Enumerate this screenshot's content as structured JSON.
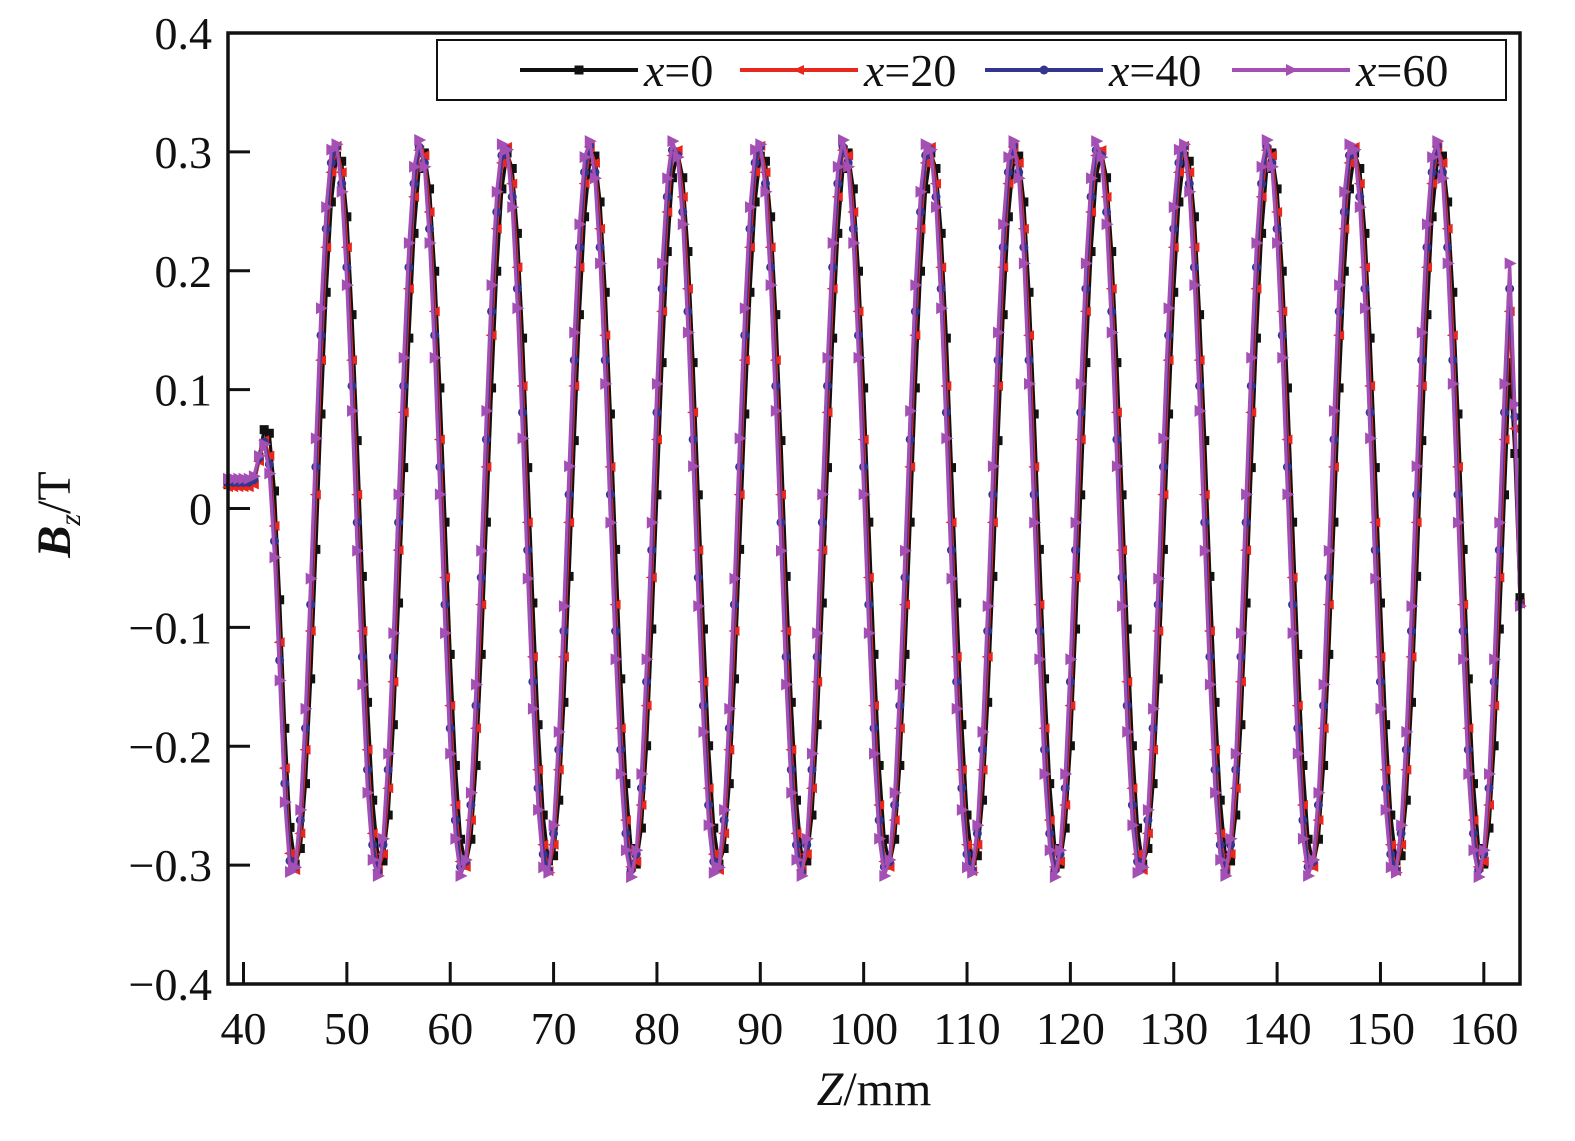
{
  "chart_data": {
    "type": "line",
    "title": "",
    "xlabel": {
      "var": "Z",
      "unit": "/mm"
    },
    "ylabel": {
      "var": "B",
      "sub": "z",
      "unit": "/T"
    },
    "xlim": [
      38.5,
      163.5
    ],
    "ylim": [
      -0.4,
      0.4
    ],
    "x_ticks": [
      40,
      50,
      60,
      70,
      80,
      90,
      100,
      110,
      120,
      130,
      140,
      150,
      160
    ],
    "x_tick_labels": [
      "40",
      "50",
      "60",
      "70",
      "80",
      "90",
      "100",
      "110",
      "120",
      "130",
      "140",
      "150",
      "160"
    ],
    "y_ticks": [
      -0.4,
      -0.3,
      -0.2,
      -0.1,
      0,
      0.1,
      0.2,
      0.3,
      0.4
    ],
    "y_tick_labels": [
      "−0.4",
      "−0.3",
      "−0.2",
      "−0.1",
      "0",
      "0.1",
      "0.2",
      "0.3",
      "0.4"
    ],
    "grid": false,
    "legend_position": "top-right",
    "sample_step_mm": 0.5,
    "series": [
      {
        "name": "x=0",
        "legend_var": "x",
        "legend_val": "=0",
        "color": "#111111",
        "marker": "square",
        "x_start": 38.5,
        "x_end": 163.5,
        "initial_value": 0.02,
        "final_value": -0.075,
        "period_mm": 8.2,
        "amplitude": 0.3,
        "phase_peak_z": 49.2
      },
      {
        "name": "x=20",
        "legend_var": "x",
        "legend_val": "=20",
        "color": "#e8271d",
        "marker": "triangle-left",
        "x_start": 38.5,
        "x_end": 163.5,
        "initial_value": 0.018,
        "final_value": -0.08,
        "period_mm": 8.2,
        "amplitude": 0.305,
        "phase_peak_z": 49.0
      },
      {
        "name": "x=40",
        "legend_var": "x",
        "legend_val": "=40",
        "color": "#33358f",
        "marker": "circle",
        "x_start": 38.5,
        "x_end": 163.5,
        "initial_value": 0.022,
        "final_value": -0.08,
        "period_mm": 8.2,
        "amplitude": 0.305,
        "phase_peak_z": 48.9
      },
      {
        "name": "x=60",
        "legend_var": "x",
        "legend_val": "=60",
        "color": "#a34fb4",
        "marker": "triangle-right",
        "x_start": 38.5,
        "x_end": 163.5,
        "initial_value": 0.025,
        "final_value": -0.082,
        "period_mm": 8.2,
        "amplitude": 0.31,
        "phase_peak_z": 48.8
      }
    ]
  }
}
